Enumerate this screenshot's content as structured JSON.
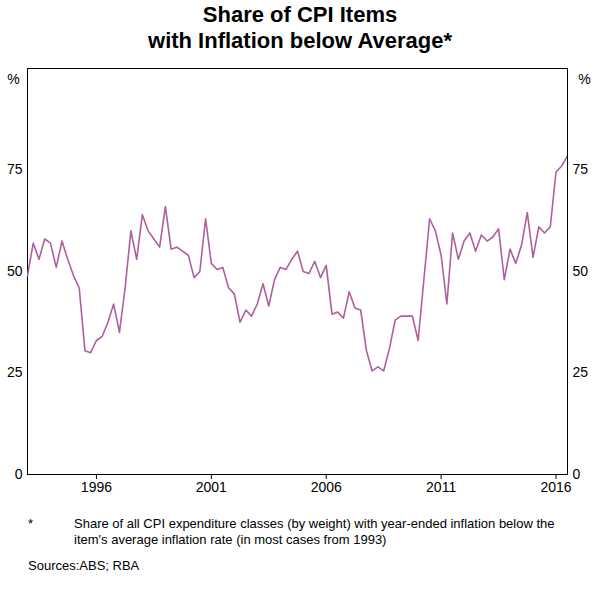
{
  "chart_data": {
    "type": "line",
    "title": "Share of CPI Items\nwith Inflation below Average*",
    "ylabel": "%",
    "color": "#b05f9e",
    "grid": false,
    "xlim": [
      1993,
      2016.5
    ],
    "xticks": [
      1996,
      2001,
      2006,
      2011,
      2016
    ],
    "ylim": [
      0,
      100
    ],
    "yticks": [
      0,
      25,
      50,
      75
    ],
    "x": [
      1993,
      1993.25,
      1993.5,
      1993.75,
      1994,
      1994.25,
      1994.5,
      1994.75,
      1995,
      1995.25,
      1995.5,
      1995.75,
      1996,
      1996.25,
      1996.5,
      1996.75,
      1997,
      1997.25,
      1997.5,
      1997.75,
      1998,
      1998.25,
      1998.5,
      1998.75,
      1999,
      1999.25,
      1999.5,
      1999.75,
      2000,
      2000.25,
      2000.5,
      2000.75,
      2001,
      2001.25,
      2001.5,
      2001.75,
      2002,
      2002.25,
      2002.5,
      2002.75,
      2003,
      2003.25,
      2003.5,
      2003.75,
      2004,
      2004.25,
      2004.5,
      2004.75,
      2005,
      2005.25,
      2005.5,
      2005.75,
      2006,
      2006.25,
      2006.5,
      2006.75,
      2007,
      2007.25,
      2007.5,
      2007.75,
      2008,
      2008.25,
      2008.5,
      2008.75,
      2009,
      2009.25,
      2009.5,
      2009.75,
      2010,
      2010.25,
      2010.5,
      2010.75,
      2011,
      2011.25,
      2011.5,
      2011.75,
      2012,
      2012.25,
      2012.5,
      2012.75,
      2013,
      2013.25,
      2013.5,
      2013.75,
      2014,
      2014.25,
      2014.5,
      2014.75,
      2015,
      2015.25,
      2015.5,
      2015.75,
      2016,
      2016.25,
      2016.5
    ],
    "values": [
      49,
      57,
      53,
      58,
      57,
      51,
      57.5,
      53,
      49,
      46,
      30.5,
      30,
      33,
      34,
      37.5,
      42,
      35,
      46,
      60,
      53,
      64,
      60,
      58,
      56,
      66,
      55.5,
      56,
      55,
      54,
      48.5,
      50,
      63,
      52,
      50.5,
      51,
      46,
      44.5,
      37.5,
      40.5,
      39,
      42,
      47,
      41.5,
      48,
      51,
      50.5,
      53,
      55,
      50,
      49.5,
      52.5,
      48.5,
      51.5,
      39.5,
      40,
      38.5,
      45,
      41,
      40.5,
      30.5,
      25.5,
      26.5,
      25.5,
      31,
      38,
      39,
      39,
      39,
      33,
      48,
      63,
      60,
      54,
      42,
      59.5,
      53,
      57.5,
      59.5,
      55,
      59,
      57.5,
      58.5,
      60.5,
      48,
      55.5,
      52,
      56.5,
      64.5,
      53.5,
      61,
      59.5,
      61,
      74.5,
      76,
      78.5
    ],
    "footnote": {
      "marker": "*",
      "text": "Share of all CPI expenditure classes (by weight) with year-ended inflation below the item's average inflation rate (in most cases from 1993)"
    },
    "sources": {
      "label": "Sources:",
      "text": "ABS; RBA"
    }
  }
}
